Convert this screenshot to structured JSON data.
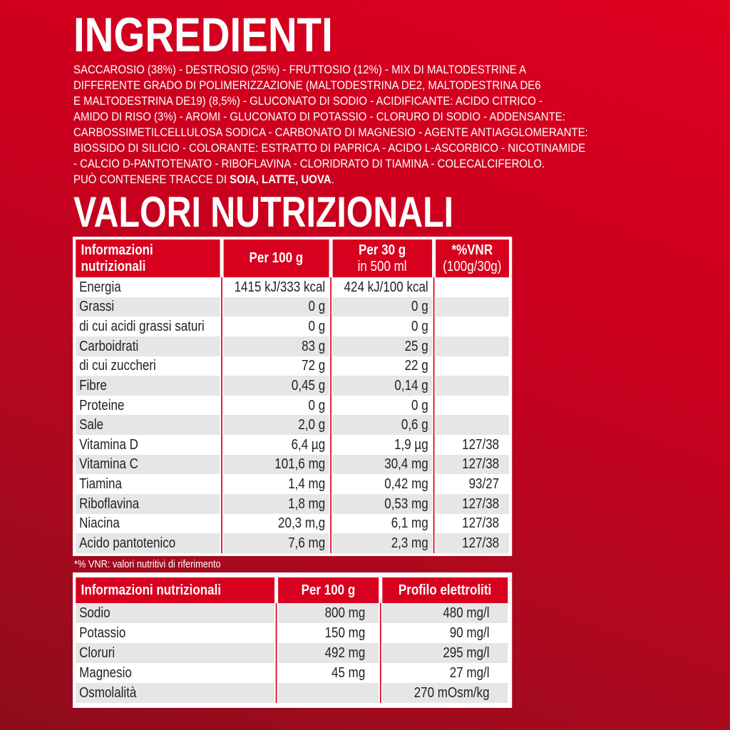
{
  "ingredients": {
    "title": "INGREDIENTI",
    "lines": [
      "SACCAROSIO (38%) - DESTROSIO (25%) - FRUTTOSIO (12%) - MIX DI MALTODESTRINE A",
      "DIFFERENTE GRADO DI POLIMERIZZAZIONE (MALTODESTRINA DE2, MALTODESTRINA DE6",
      "E MALTODESTRINA DE19) (8,5%) - GLUCONATO DI SODIO - ACIDIFICANTE: ACIDO CITRICO -",
      "AMIDO DI RISO (3%) - AROMI - GLUCONATO DI POTASSIO - CLORURO DI SODIO - ADDENSANTE:",
      "CARBOSSIMETILCELLULOSA SODICA - CARBONATO DI MAGNESIO - AGENTE ANTIAGGLOMERANTE:",
      "BIOSSIDO DI SILICIO - COLORANTE: ESTRATTO DI PAPRICA - ACIDO L-ASCORBICO - NICOTINAMIDE",
      "- CALCIO D-PANTOTENATO - RIBOFLAVINA - CLORIDRATO DI TIAMINA - COLECALCIFEROLO."
    ],
    "allergen_prefix": "PUÒ CONTENERE TRACCE DI ",
    "allergens": "SOIA, LATTE, UOVA",
    "allergen_suffix": "."
  },
  "nutrition": {
    "title": "VALORI NUTRIZIONALI",
    "headers": [
      {
        "main": "Informazioni",
        "sub": "nutrizionali"
      },
      {
        "main": "Per 100 g"
      },
      {
        "main": "Per 30 g",
        "sub": "in 500 ml"
      },
      {
        "main": "*%VNR",
        "sub": "(100g/30g)"
      }
    ],
    "rows": [
      [
        "Energia",
        "1415 kJ/333 kcal",
        "424 kJ/100 kcal",
        ""
      ],
      [
        "Grassi",
        "0 g",
        "0 g",
        ""
      ],
      [
        "di cui acidi grassi saturi",
        "0 g",
        "0 g",
        ""
      ],
      [
        "Carboidrati",
        "83 g",
        "25 g",
        ""
      ],
      [
        "di cui zuccheri",
        "72 g",
        "22 g",
        ""
      ],
      [
        "Fibre",
        "0,45 g",
        "0,14 g",
        ""
      ],
      [
        "Proteine",
        "0 g",
        "0 g",
        ""
      ],
      [
        "Sale",
        "2,0 g",
        "0,6 g",
        ""
      ],
      [
        "Vitamina D",
        "6,4 µg",
        "1,9 µg",
        "127/38"
      ],
      [
        "Vitamina C",
        "101,6 mg",
        "30,4 mg",
        "127/38"
      ],
      [
        "Tiamina",
        "1,4 mg",
        "0,42 mg",
        "93/27"
      ],
      [
        "Riboflavina",
        "1,8 mg",
        "0,53 mg",
        "127/38"
      ],
      [
        "Niacina",
        "20,3 m,g",
        "6,1 mg",
        "127/38"
      ],
      [
        "Acido pantotenico",
        "7,6 mg",
        "2,3 mg",
        "127/38"
      ]
    ],
    "footnote": "*% VNR: valori nutritivi di riferimento"
  },
  "electrolytes": {
    "headers": [
      "Informazioni nutrizionali",
      "Per 100 g",
      "Profilo elettroliti"
    ],
    "rows": [
      [
        "Sodio",
        "800 mg",
        "480 mg/l"
      ],
      [
        "Potassio",
        "150 mg",
        "90 mg/l"
      ],
      [
        "Cloruri",
        "492 mg",
        "295 mg/l"
      ],
      [
        "Magnesio",
        "45 mg",
        "27 mg/l"
      ],
      [
        "Osmolalità",
        "",
        "270 mOsm/kg"
      ]
    ]
  },
  "colors": {
    "brand_red": "#d7001e",
    "row_gray": "#e6e6e6"
  }
}
